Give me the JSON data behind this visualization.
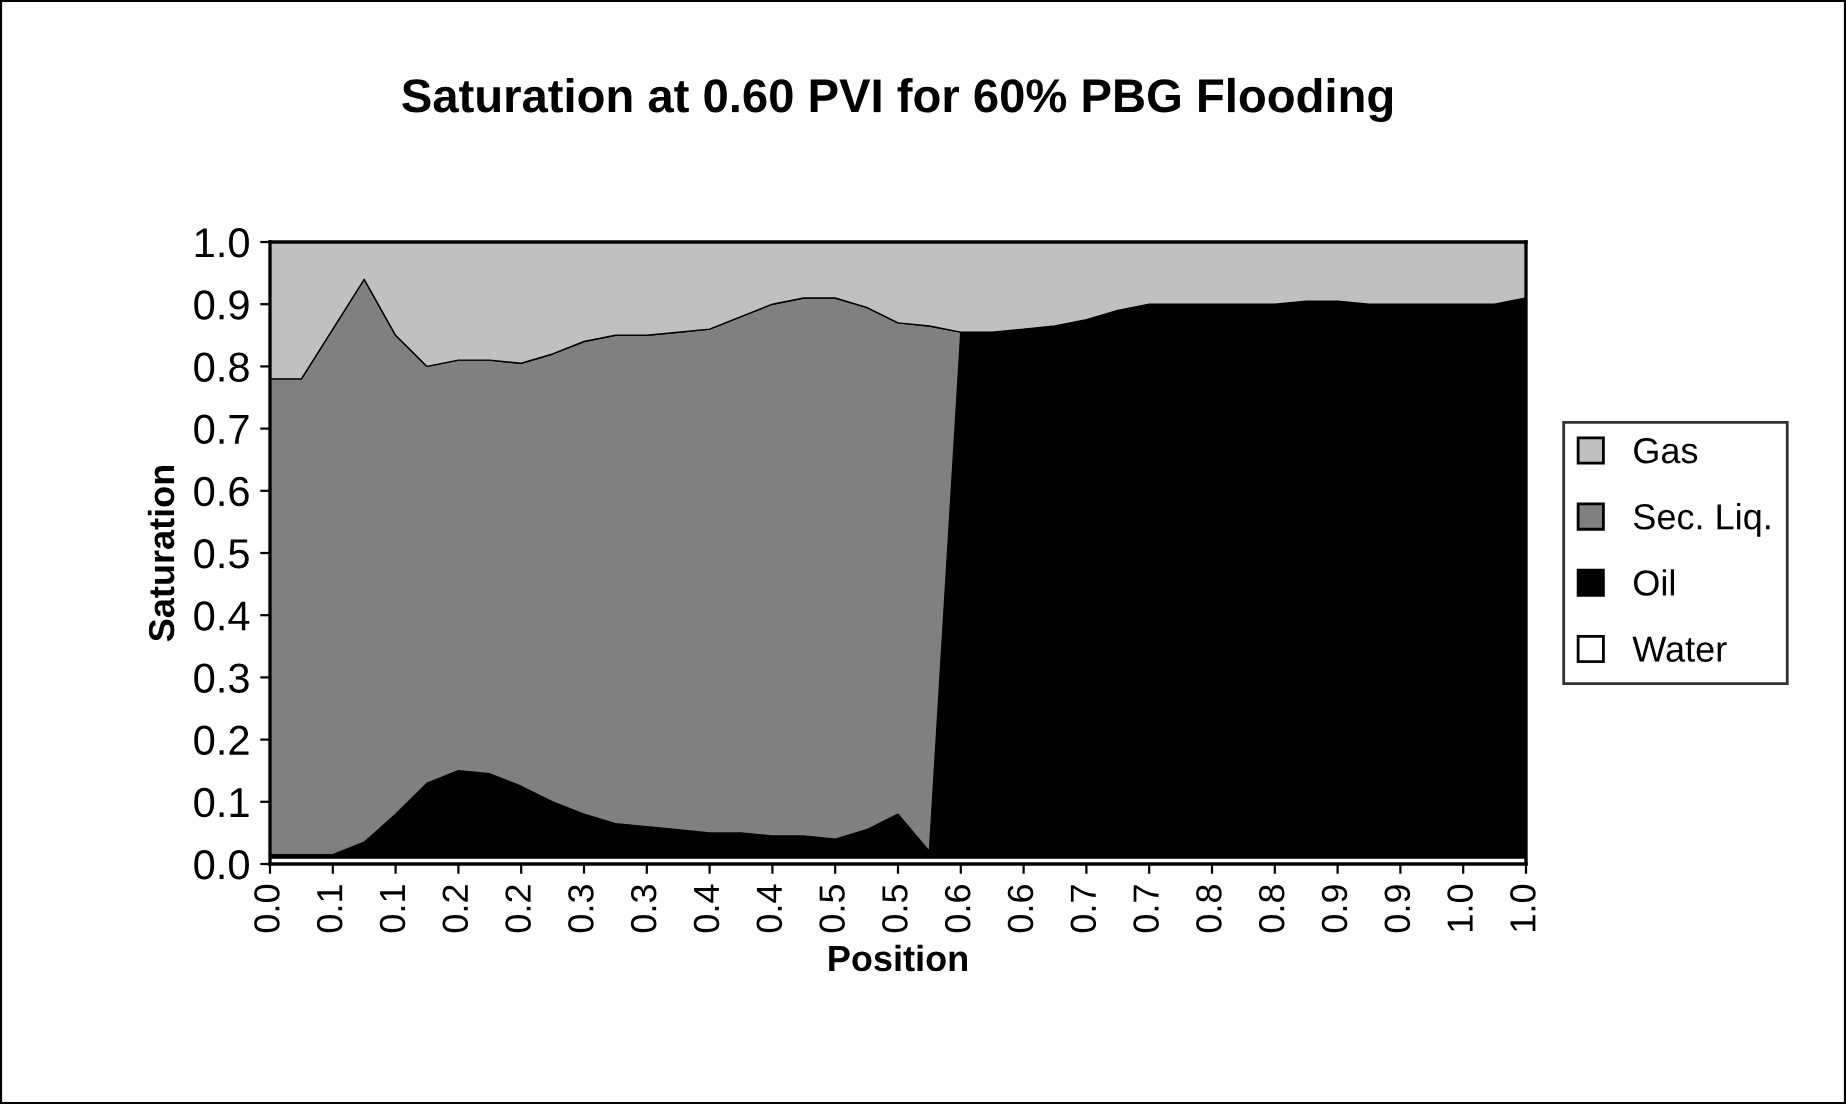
{
  "chart_data": {
    "type": "area",
    "stacked": true,
    "title": "Saturation at 0.60 PVI for 60% PBG Flooding",
    "xlabel": "Position",
    "ylabel": "Saturation",
    "x": [
      0,
      0.025,
      0.05,
      0.075,
      0.1,
      0.125,
      0.15,
      0.175,
      0.2,
      0.225,
      0.25,
      0.275,
      0.3,
      0.325,
      0.35,
      0.375,
      0.4,
      0.425,
      0.45,
      0.475,
      0.5,
      0.525,
      0.55,
      0.575,
      0.6,
      0.625,
      0.65,
      0.675,
      0.7,
      0.725,
      0.75,
      0.775,
      0.8,
      0.825,
      0.85,
      0.875,
      0.9,
      0.925,
      0.95,
      0.975,
      1.0
    ],
    "series": [
      {
        "name": "Water",
        "color": "#ffffff",
        "values": [
          0.01,
          0.01,
          0.01,
          0.01,
          0.01,
          0.01,
          0.01,
          0.01,
          0.01,
          0.01,
          0.01,
          0.01,
          0.01,
          0.01,
          0.01,
          0.01,
          0.01,
          0.01,
          0.01,
          0.01,
          0.01,
          0.01,
          0.01,
          0.01,
          0.01,
          0.01,
          0.01,
          0.01,
          0.01,
          0.01,
          0.01,
          0.01,
          0.01,
          0.01,
          0.01,
          0.01,
          0.01,
          0.01,
          0.01,
          0.01,
          0.01
        ]
      },
      {
        "name": "Oil",
        "color": "#000000",
        "values": [
          0.005,
          0.005,
          0.005,
          0.025,
          0.07,
          0.12,
          0.14,
          0.135,
          0.115,
          0.09,
          0.07,
          0.055,
          0.05,
          0.045,
          0.04,
          0.04,
          0.035,
          0.035,
          0.03,
          0.045,
          0.07,
          0.01,
          0.845,
          0.845,
          0.85,
          0.855,
          0.865,
          0.88,
          0.89,
          0.89,
          0.89,
          0.89,
          0.89,
          0.895,
          0.895,
          0.89,
          0.89,
          0.89,
          0.89,
          0.89,
          0.9
        ]
      },
      {
        "name": "Sec. Liq.",
        "color": "#808080",
        "values": [
          0.765,
          0.765,
          0.845,
          0.905,
          0.77,
          0.67,
          0.66,
          0.665,
          0.68,
          0.72,
          0.76,
          0.785,
          0.79,
          0.8,
          0.81,
          0.83,
          0.855,
          0.865,
          0.87,
          0.84,
          0.79,
          0.845,
          0,
          0,
          0,
          0,
          0,
          0,
          0,
          0,
          0,
          0,
          0,
          0,
          0,
          0,
          0,
          0,
          0,
          0,
          0
        ]
      },
      {
        "name": "Gas",
        "color": "#c0c0c0",
        "values": [
          0.22,
          0.22,
          0.14,
          0.06,
          0.15,
          0.2,
          0.19,
          0.19,
          0.195,
          0.18,
          0.16,
          0.15,
          0.15,
          0.145,
          0.14,
          0.12,
          0.1,
          0.09,
          0.09,
          0.105,
          0.13,
          0.135,
          0.145,
          0.145,
          0.14,
          0.135,
          0.125,
          0.11,
          0.1,
          0.1,
          0.1,
          0.1,
          0.1,
          0.095,
          0.095,
          0.1,
          0.1,
          0.1,
          0.1,
          0.1,
          0.09
        ]
      }
    ],
    "xlim": [
      0,
      1
    ],
    "xticks": [
      {
        "value": 0,
        "label": "0.0"
      },
      {
        "value": 0.05,
        "label": "0.1"
      },
      {
        "value": 0.1,
        "label": "0.1"
      },
      {
        "value": 0.15,
        "label": "0.2"
      },
      {
        "value": 0.2,
        "label": "0.2"
      },
      {
        "value": 0.25,
        "label": "0.3"
      },
      {
        "value": 0.3,
        "label": "0.3"
      },
      {
        "value": 0.35,
        "label": "0.4"
      },
      {
        "value": 0.4,
        "label": "0.4"
      },
      {
        "value": 0.45,
        "label": "0.5"
      },
      {
        "value": 0.5,
        "label": "0.5"
      },
      {
        "value": 0.55,
        "label": "0.6"
      },
      {
        "value": 0.6,
        "label": "0.6"
      },
      {
        "value": 0.65,
        "label": "0.7"
      },
      {
        "value": 0.7,
        "label": "0.7"
      },
      {
        "value": 0.75,
        "label": "0.8"
      },
      {
        "value": 0.8,
        "label": "0.8"
      },
      {
        "value": 0.85,
        "label": "0.9"
      },
      {
        "value": 0.9,
        "label": "0.9"
      },
      {
        "value": 0.95,
        "label": "1.0"
      },
      {
        "value": 1.0,
        "label": "1.0"
      }
    ],
    "ylim": [
      0,
      1
    ],
    "yticks": [
      {
        "value": 0,
        "label": "0.0"
      },
      {
        "value": 0.1,
        "label": "0.1"
      },
      {
        "value": 0.2,
        "label": "0.2"
      },
      {
        "value": 0.3,
        "label": "0.3"
      },
      {
        "value": 0.4,
        "label": "0.4"
      },
      {
        "value": 0.5,
        "label": "0.5"
      },
      {
        "value": 0.6,
        "label": "0.6"
      },
      {
        "value": 0.7,
        "label": "0.7"
      },
      {
        "value": 0.8,
        "label": "0.8"
      },
      {
        "value": 0.9,
        "label": "0.9"
      },
      {
        "value": 1.0,
        "label": "1.0"
      }
    ],
    "grid": false,
    "legend": "right"
  }
}
